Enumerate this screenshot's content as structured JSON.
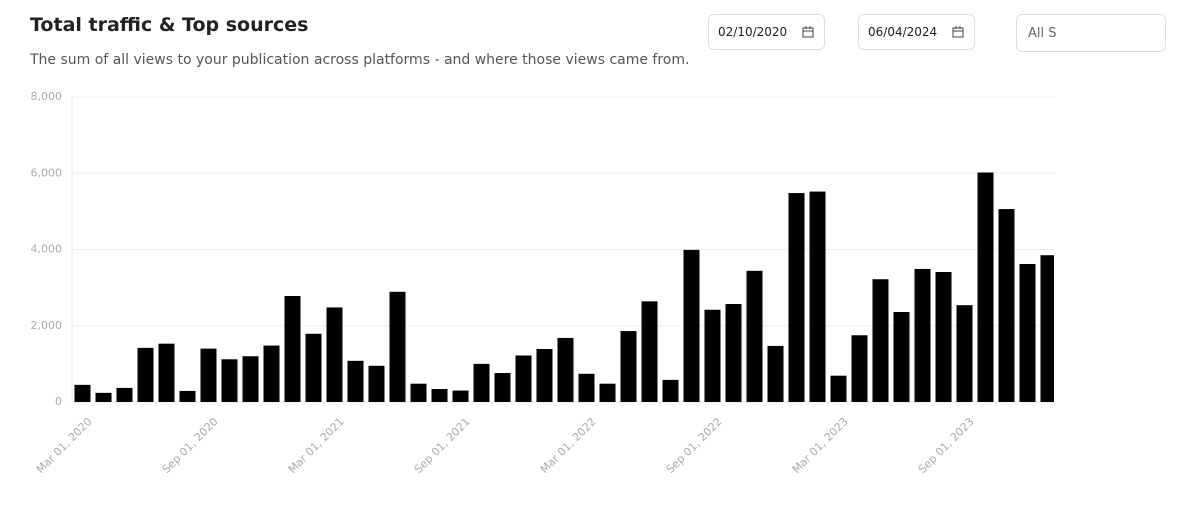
{
  "header": {
    "title": "Total traffic & Top sources",
    "subtitle": "The sum of all views to your publication across platforms - and where those views came from."
  },
  "filters": {
    "start_date": "02/10/2020",
    "end_date": "06/04/2024",
    "source": "All S"
  },
  "chart_data": {
    "type": "bar",
    "color": "#000000",
    "grid": true,
    "categories": [
      "Mar 01, 2020",
      null,
      null,
      null,
      null,
      null,
      "Sep 01, 2020",
      null,
      null,
      null,
      null,
      null,
      "Mar 01, 2021",
      null,
      null,
      null,
      null,
      null,
      "Sep 01, 2021",
      null,
      null,
      null,
      null,
      null,
      "Mar 01, 2022",
      null,
      null,
      null,
      null,
      null,
      "Sep 01, 2022",
      null,
      null,
      null,
      null,
      null,
      "Mar 01, 2023",
      null,
      null,
      null,
      null,
      null,
      "Sep 01, 2023",
      null,
      null,
      null,
      null
    ],
    "values": [
      450,
      240,
      370,
      1420,
      1530,
      290,
      1400,
      1120,
      1200,
      1480,
      2780,
      1790,
      2480,
      1080,
      950,
      2890,
      480,
      340,
      300,
      1000,
      760,
      1220,
      1390,
      1680,
      740,
      480,
      1860,
      2640,
      580,
      3990,
      2420,
      2570,
      3440,
      1470,
      5480,
      5520,
      690,
      1750,
      3220,
      2360,
      3490,
      3410,
      2540,
      6020,
      5060,
      3620,
      3850
    ],
    "ylim": [
      0,
      8000
    ],
    "yticks": [
      0,
      {
        "value": 2000,
        "label": "2,000"
      },
      {
        "value": 4000,
        "label": "4,000"
      },
      {
        "value": 6000,
        "label": "6,000"
      },
      {
        "value": 8000,
        "label": "8,000"
      }
    ]
  }
}
